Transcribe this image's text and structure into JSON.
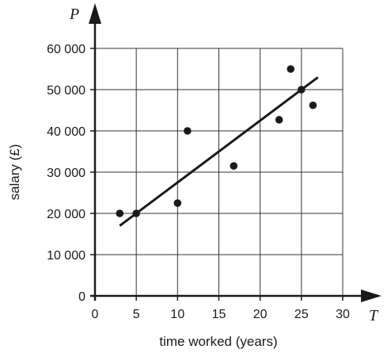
{
  "chart_data": {
    "type": "scatter",
    "title": "",
    "xlabel": "time worked (years)",
    "ylabel": "salary (£)",
    "x_axis_variable": "T",
    "y_axis_variable": "P",
    "xlim": [
      0,
      30
    ],
    "ylim": [
      0,
      60000
    ],
    "x_ticks": [
      0,
      5,
      10,
      15,
      20,
      25,
      30
    ],
    "x_tick_labels": [
      "0",
      "5",
      "10",
      "15",
      "20",
      "25",
      "30"
    ],
    "y_ticks": [
      0,
      10000,
      20000,
      30000,
      40000,
      50000,
      60000
    ],
    "y_tick_labels": [
      "0",
      "10 000",
      "20 000",
      "30 000",
      "40 000",
      "50 000",
      "60 000"
    ],
    "grid": true,
    "points": [
      {
        "x": 3,
        "y": 20000
      },
      {
        "x": 5,
        "y": 20000
      },
      {
        "x": 10,
        "y": 22500
      },
      {
        "x": 11.2,
        "y": 40000
      },
      {
        "x": 16.8,
        "y": 31500
      },
      {
        "x": 22.3,
        "y": 42700
      },
      {
        "x": 23.7,
        "y": 55000
      },
      {
        "x": 25,
        "y": 50000
      },
      {
        "x": 26.4,
        "y": 46200
      }
    ],
    "line_of_best_fit": {
      "x": [
        3,
        27
      ],
      "y": [
        17000,
        53000
      ]
    },
    "colors": {
      "points": "#1a1a1a",
      "line": "#1a1a1a",
      "grid": "#333333",
      "axis": "#1a1a1a"
    }
  }
}
